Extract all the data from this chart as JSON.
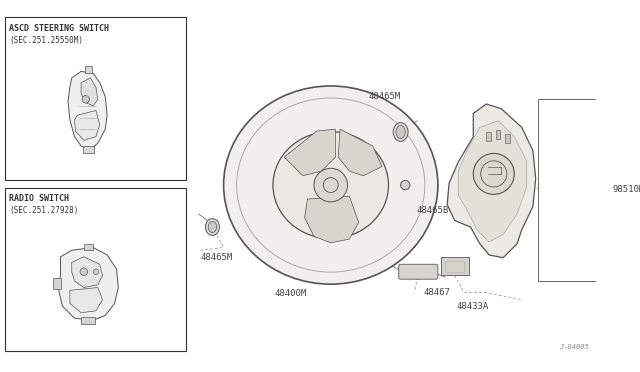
{
  "bg_color": "#ffffff",
  "line_color": "#aaaaaa",
  "dark_line": "#555555",
  "text_color": "#444444",
  "diagram_code": "J-84005",
  "box1_title": "ASCD STEERING SWITCH",
  "box1_subtitle": "(SEC.251.25550M)",
  "box2_title": "RADIO SWITCH",
  "box2_subtitle": "(SEC.251.27928)",
  "label_fontsize": 6.5,
  "title_fontsize": 6.0,
  "subtitle_fontsize": 5.5
}
